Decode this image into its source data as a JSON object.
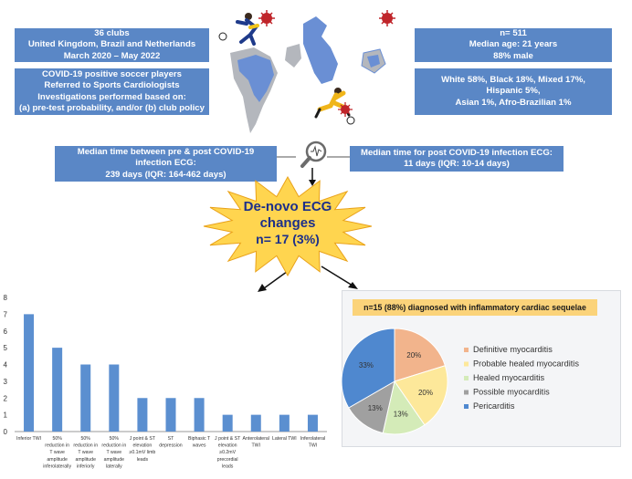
{
  "top_left": {
    "box1": {
      "line1": "36 clubs",
      "line2": "United Kingdom, Brazil and Netherlands",
      "line3": "March 2020 – May 2022"
    },
    "box2": {
      "line1": "COVID-19 positive soccer players",
      "line2": "Referred to Sports Cardiologists",
      "line3": "Investigations performed based on:",
      "line4": "(a) pre-test probability, and/or (b) club policy"
    }
  },
  "top_right": {
    "box1": {
      "line1": "n= 511",
      "line2": "Median age: 21 years",
      "line3": "88% male"
    },
    "box2": {
      "line1": "White 58%, Black 18%, Mixed 17%,",
      "line2": "Hispanic 5%,",
      "line3": "Asian 1%, Afro-Brazilian 1%"
    }
  },
  "middle": {
    "left_box": {
      "line1": "Median time between pre & post COVID-19",
      "line2": "infection ECG:",
      "line3": "239 days (IQR: 164-462 days)"
    },
    "right_box": {
      "line1": "Median time for post COVID-19 infection ECG:",
      "line2": "11 days (IQR: 10-14 days)"
    }
  },
  "starburst": {
    "line1": "De-novo ECG",
    "line2": "changes",
    "line3": "n= 17 (3%)"
  },
  "colors": {
    "box_blue": "#5a87c6",
    "bar_blue": "#5b8fd0",
    "star_fill": "#ffd54f",
    "star_text": "#1c2f8a",
    "pie_title_bg": "#fbd37a"
  },
  "chart_data": [
    {
      "type": "bar",
      "categories": [
        "Inferior TWI",
        "50% reduction in T wave amplitude inferolaterally",
        "50% reduction in T wave amplitude inferiorly",
        "50% reduction in T wave amplitude laterally",
        "J point & ST elevation ≥0.1mV limb leads",
        "ST depression",
        "Biphasic T waves",
        "J point & ST elevation ≥0.2mV precordial leads",
        "Anterolateral TWI",
        "Lateral TWI",
        "Inferolateral TWI"
      ],
      "category_lines": [
        [
          "Inferior TWI"
        ],
        [
          "50%",
          "reduction in",
          "T wave",
          "amplitude",
          "inferolaterally"
        ],
        [
          "50%",
          "reduction in",
          "T wave",
          "amplitude",
          "inferiorly"
        ],
        [
          "50%",
          "reduction in",
          "T wave",
          "amplitude",
          "laterally"
        ],
        [
          "J point & ST",
          "elevation",
          "≥0.1mV limb",
          "leads"
        ],
        [
          "ST",
          "depression"
        ],
        [
          "Biphasic T",
          "waves"
        ],
        [
          "J point & ST",
          "elevation",
          "≥0.2mV",
          "precordial",
          "leads"
        ],
        [
          "Anterolateral",
          "TWI"
        ],
        [
          "Lateral TWI"
        ],
        [
          "Inferolateral",
          "TWI"
        ]
      ],
      "values": [
        7,
        5,
        4,
        4,
        2,
        2,
        2,
        1,
        1,
        1,
        1
      ],
      "ylim": [
        0,
        8
      ],
      "yticks": [
        "0",
        "1",
        "2",
        "3",
        "4",
        "5",
        "6",
        "7",
        "8"
      ],
      "grid": false
    },
    {
      "type": "pie",
      "title": "n=15 (88%) diagnosed with inflammatory cardiac sequelae",
      "labels": [
        "Definitive myocarditis",
        "Probable healed myocarditis",
        "Healed myocarditis",
        "Possible myocarditis",
        "Pericarditis"
      ],
      "values": [
        20,
        20,
        13,
        13,
        33
      ],
      "data_labels": [
        "20%",
        "20%",
        "13%",
        "13%",
        "33%"
      ],
      "colors": [
        "#f2b48c",
        "#fde89a",
        "#d4ebb8",
        "#a0a0a0",
        "#4f88cf"
      ],
      "legend": "right"
    }
  ]
}
